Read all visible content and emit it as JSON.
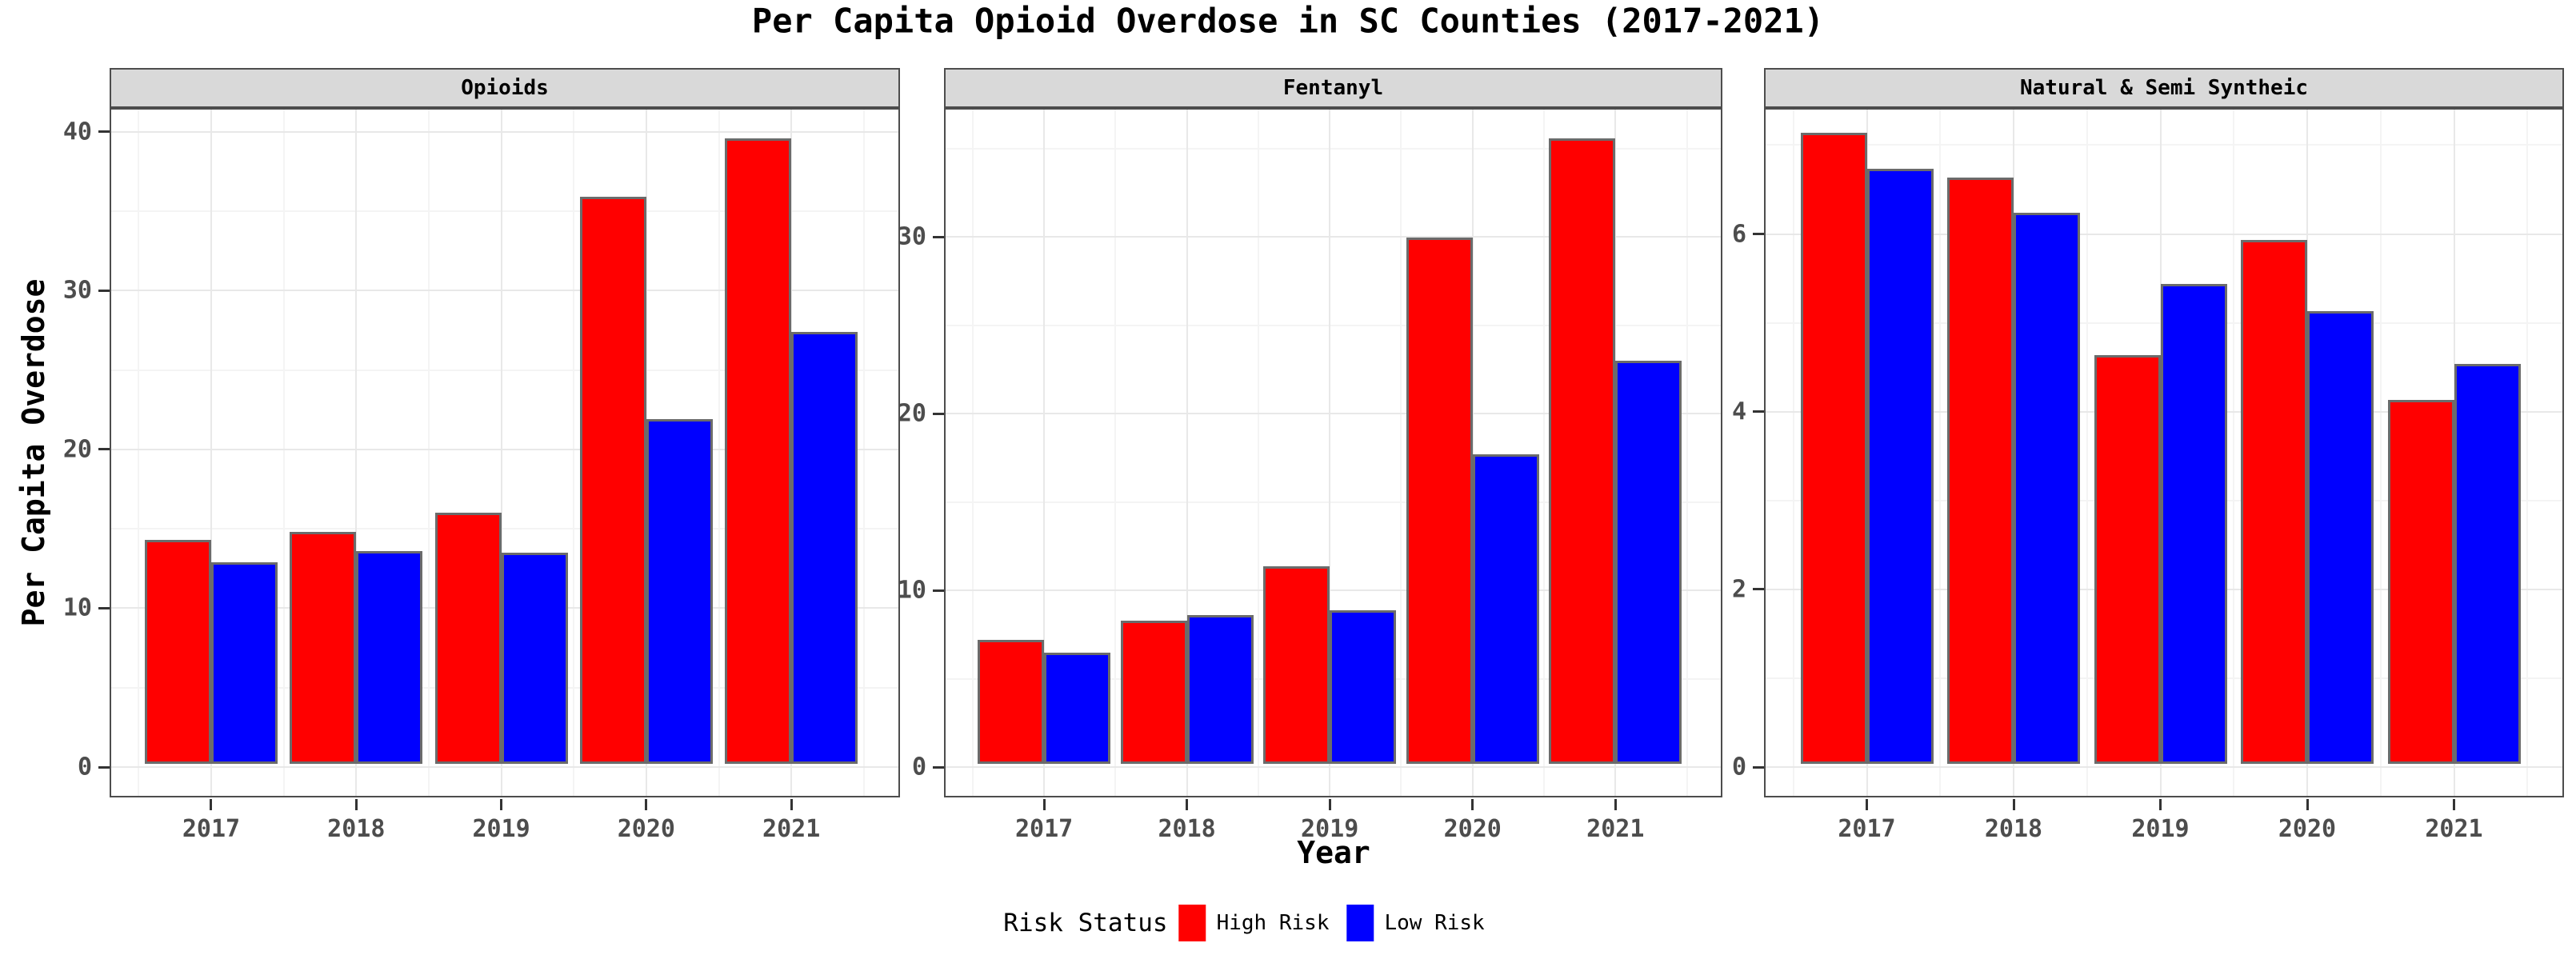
{
  "title": "Per Capita Opioid Overdose in SC Counties (2017-2021)",
  "x_axis": {
    "title": "Year",
    "categories": [
      "2017",
      "2018",
      "2019",
      "2020",
      "2021"
    ]
  },
  "y_axis": {
    "title": "Per Capita Overdose"
  },
  "legend": {
    "title": "Risk Status",
    "items": [
      {
        "label": "High Risk",
        "color": "#FF0000"
      },
      {
        "label": "Low Risk",
        "color": "#0000FF"
      }
    ]
  },
  "colors": {
    "high_risk": "#FF0000",
    "low_risk": "#0000FF",
    "bar_border": "#6B6B6B",
    "strip_bg": "#D9D9D9",
    "panel_border": "#4D4D4D",
    "grid_major": "#E8E8E8",
    "grid_minor": "#F4F4F4",
    "tick_label": "#4D4D4D"
  },
  "chart_data": [
    {
      "type": "bar",
      "title": "Opioids",
      "categories": [
        "2017",
        "2018",
        "2019",
        "2020",
        "2021"
      ],
      "series": [
        {
          "name": "High Risk",
          "values": [
            14.1,
            14.6,
            15.8,
            35.7,
            39.4
          ]
        },
        {
          "name": "Low Risk",
          "values": [
            12.7,
            13.4,
            13.3,
            21.7,
            27.2
          ]
        }
      ],
      "xlabel": "Year",
      "ylabel": "Per Capita Overdose",
      "ylim": [
        0,
        41.4
      ],
      "yticks": [
        0,
        10,
        20,
        30,
        40
      ],
      "grid": true,
      "legend_position": "bottom"
    },
    {
      "type": "bar",
      "title": "Fentanyl",
      "categories": [
        "2017",
        "2018",
        "2019",
        "2020",
        "2021"
      ],
      "series": [
        {
          "name": "High Risk",
          "values": [
            7.0,
            8.1,
            11.2,
            29.8,
            35.4
          ]
        },
        {
          "name": "Low Risk",
          "values": [
            6.3,
            8.4,
            8.7,
            17.5,
            22.8
          ]
        }
      ],
      "xlabel": "Year",
      "ylabel": "Per Capita Overdose",
      "ylim": [
        0,
        37.2
      ],
      "yticks": [
        0,
        10,
        20,
        30
      ],
      "grid": true,
      "legend_position": "bottom"
    },
    {
      "type": "bar",
      "title": "Natural & Semi Syntheic",
      "categories": [
        "2017",
        "2018",
        "2019",
        "2020",
        "2021"
      ],
      "series": [
        {
          "name": "High Risk",
          "values": [
            7.1,
            6.6,
            4.6,
            5.9,
            4.1
          ]
        },
        {
          "name": "Low Risk",
          "values": [
            6.7,
            6.2,
            5.4,
            5.1,
            4.5
          ]
        }
      ],
      "xlabel": "Year",
      "ylabel": "Per Capita Overdose",
      "ylim": [
        0,
        7.4
      ],
      "yticks": [
        0,
        2,
        4,
        6
      ],
      "grid": true,
      "legend_position": "bottom"
    }
  ]
}
